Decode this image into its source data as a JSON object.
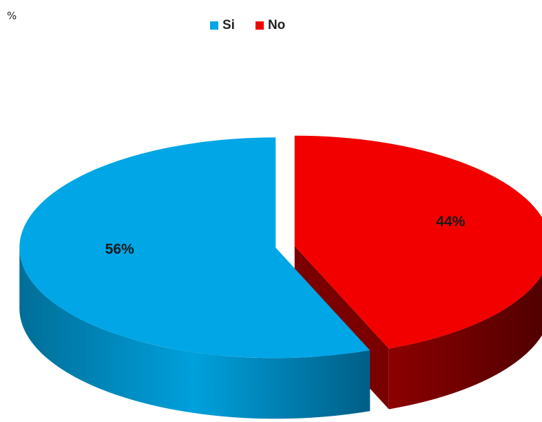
{
  "corner_label": "%",
  "chart_data": {
    "type": "pie",
    "categories": [
      "Si",
      "No"
    ],
    "values": [
      56,
      44
    ],
    "data_labels": [
      "56%",
      "44%"
    ],
    "colors": [
      "#00A6E6",
      "#F20000"
    ],
    "side_colors": [
      "#0089BD",
      "#7A0000"
    ],
    "legend_position": "top",
    "exploded": true,
    "three_d": true
  }
}
